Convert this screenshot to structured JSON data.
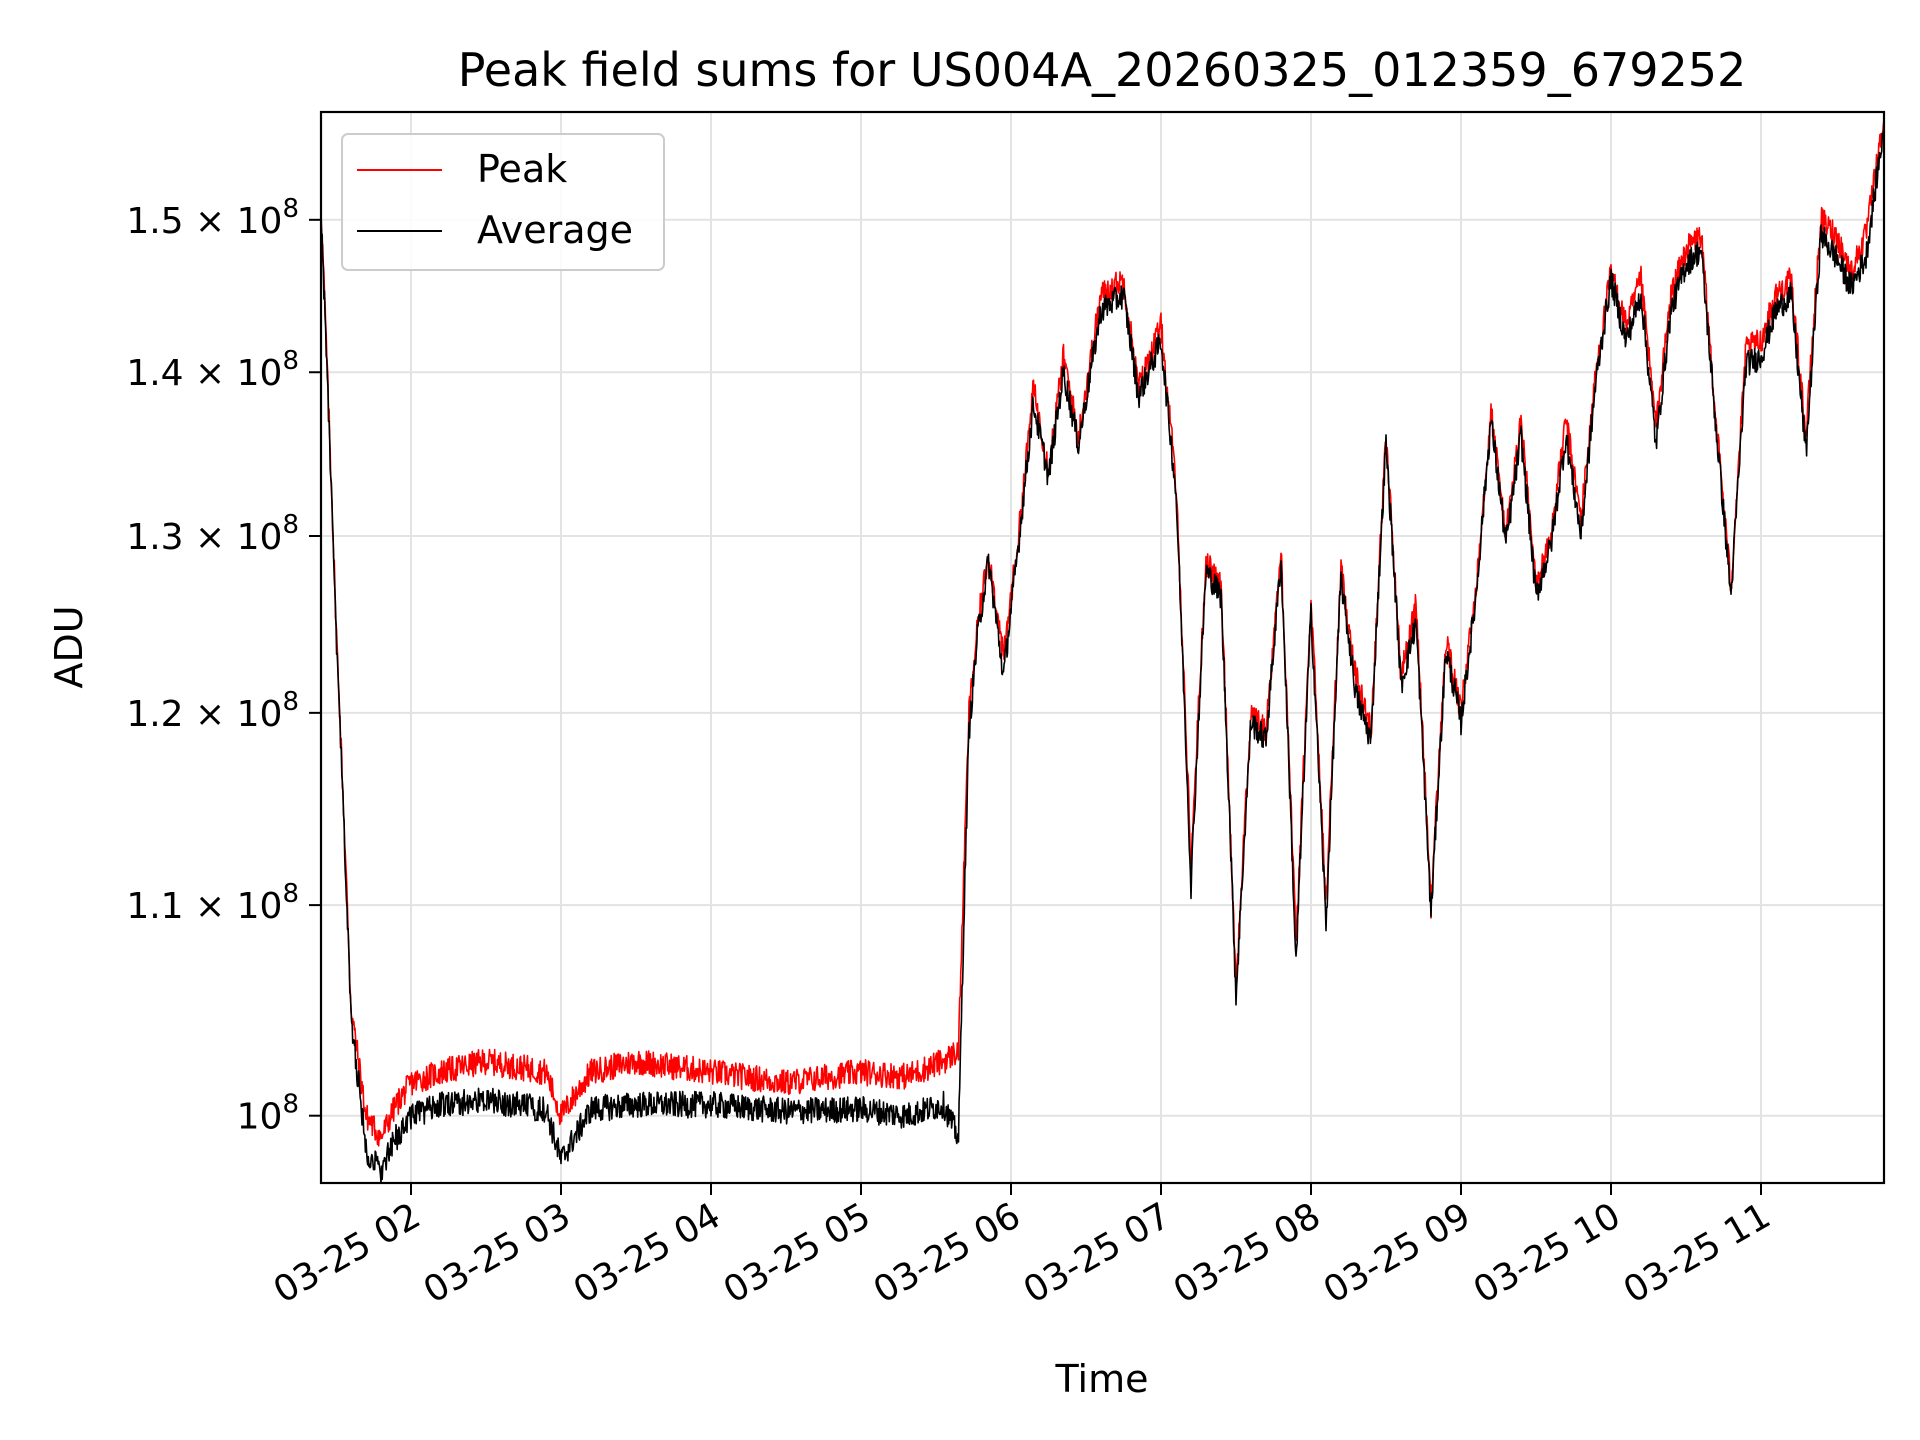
{
  "chart_data": {
    "type": "line",
    "title": "Peak field sums for US004A_20260325_012359_679252",
    "xlabel": "Time",
    "ylabel": "ADU",
    "y_scale": "log",
    "xlim_hours": [
      1.4,
      11.82
    ],
    "ylim": [
      97000000,
      157500000
    ],
    "grid": true,
    "legend_position": "upper-left",
    "x_ticks": [
      {
        "hour": 2,
        "label": "03-25 02"
      },
      {
        "hour": 3,
        "label": "03-25 03"
      },
      {
        "hour": 4,
        "label": "03-25 04"
      },
      {
        "hour": 5,
        "label": "03-25 05"
      },
      {
        "hour": 6,
        "label": "03-25 06"
      },
      {
        "hour": 7,
        "label": "03-25 07"
      },
      {
        "hour": 8,
        "label": "03-25 08"
      },
      {
        "hour": 9,
        "label": "03-25 09"
      },
      {
        "hour": 10,
        "label": "03-25 10"
      },
      {
        "hour": 11,
        "label": "03-25 11"
      }
    ],
    "y_ticks": [
      {
        "value": 100000000,
        "base": "10",
        "exp": "8"
      },
      {
        "value": 110000000,
        "base": "1.1 × 10",
        "exp": "8"
      },
      {
        "value": 120000000,
        "base": "1.2 × 10",
        "exp": "8"
      },
      {
        "value": 130000000,
        "base": "1.3 × 10",
        "exp": "8"
      },
      {
        "value": 140000000,
        "base": "1.4 × 10",
        "exp": "8"
      },
      {
        "value": 150000000,
        "base": "1.5 × 10",
        "exp": "8"
      }
    ],
    "series": [
      {
        "name": "Peak",
        "color": "#ff0000",
        "x": [
          1.4,
          1.5,
          1.6,
          1.7,
          1.8,
          1.9,
          2.0,
          2.2,
          2.5,
          2.9,
          3.0,
          3.2,
          3.5,
          4.0,
          4.5,
          5.0,
          5.3,
          5.55,
          5.65,
          5.72,
          5.78,
          5.85,
          5.95,
          6.05,
          6.15,
          6.25,
          6.35,
          6.45,
          6.6,
          6.75,
          6.85,
          7.0,
          7.1,
          7.2,
          7.3,
          7.4,
          7.5,
          7.6,
          7.7,
          7.8,
          7.9,
          8.0,
          8.1,
          8.2,
          8.3,
          8.4,
          8.5,
          8.6,
          8.7,
          8.8,
          8.9,
          9.0,
          9.1,
          9.2,
          9.3,
          9.4,
          9.5,
          9.6,
          9.7,
          9.8,
          9.9,
          10.0,
          10.1,
          10.2,
          10.3,
          10.4,
          10.5,
          10.6,
          10.7,
          10.8,
          10.9,
          11.0,
          11.1,
          11.2,
          11.3,
          11.4,
          11.5,
          11.6,
          11.7,
          11.82
        ],
        "y": [
          151000000,
          125000000,
          105000000,
          100000000,
          99000000,
          100500000,
          101500000,
          102000000,
          102500000,
          102000000,
          100000000,
          102000000,
          102500000,
          102000000,
          101500000,
          102000000,
          101800000,
          102500000,
          103000000,
          120000000,
          125000000,
          129000000,
          123000000,
          130000000,
          139000000,
          134000000,
          141000000,
          136000000,
          145000000,
          146000000,
          139000000,
          143000000,
          133000000,
          112000000,
          128500000,
          127000000,
          106000000,
          120000000,
          119000000,
          129000000,
          108000000,
          126000000,
          110000000,
          128000000,
          122000000,
          119000000,
          136000000,
          122000000,
          126000000,
          110000000,
          124000000,
          120000000,
          127000000,
          137500000,
          130000000,
          137000000,
          127000000,
          130000000,
          137000000,
          131000000,
          140000000,
          146500000,
          143000000,
          146000000,
          136500000,
          145000000,
          148000000,
          149000000,
          137000000,
          127000000,
          141500000,
          142000000,
          145000000,
          146000000,
          136000000,
          150000000,
          149000000,
          146500000,
          149000000,
          157000000
        ]
      },
      {
        "name": "Average",
        "color": "#000000",
        "x": [
          1.4,
          1.5,
          1.6,
          1.7,
          1.8,
          1.9,
          2.0,
          2.2,
          2.5,
          2.9,
          3.0,
          3.2,
          3.5,
          4.0,
          4.5,
          5.0,
          5.3,
          5.55,
          5.65,
          5.72,
          5.78,
          5.85,
          5.95,
          6.05,
          6.15,
          6.25,
          6.35,
          6.45,
          6.6,
          6.75,
          6.85,
          7.0,
          7.1,
          7.2,
          7.3,
          7.4,
          7.5,
          7.6,
          7.7,
          7.8,
          7.9,
          8.0,
          8.1,
          8.2,
          8.3,
          8.4,
          8.5,
          8.6,
          8.7,
          8.8,
          8.9,
          9.0,
          9.1,
          9.2,
          9.3,
          9.4,
          9.5,
          9.6,
          9.7,
          9.8,
          9.9,
          10.0,
          10.1,
          10.2,
          10.3,
          10.4,
          10.5,
          10.6,
          10.7,
          10.8,
          10.9,
          11.0,
          11.1,
          11.2,
          11.3,
          11.4,
          11.5,
          11.6,
          11.7,
          11.82
        ],
        "y": [
          150500000,
          124500000,
          104500000,
          98500000,
          97500000,
          99000000,
          100000000,
          100500000,
          100700000,
          100300000,
          98000000,
          100300000,
          100500000,
          100500000,
          100200000,
          100300000,
          100000000,
          100500000,
          99000000,
          119000000,
          124500000,
          128500000,
          122000000,
          129500000,
          138000000,
          133500000,
          140000000,
          135500000,
          144000000,
          145000000,
          138500000,
          142000000,
          132500000,
          111000000,
          128000000,
          126500000,
          105500000,
          119500000,
          118500000,
          128500000,
          107000000,
          125500000,
          109000000,
          127500000,
          121000000,
          118500000,
          135500000,
          121500000,
          125000000,
          109500000,
          123500000,
          119500000,
          126500000,
          137000000,
          129500000,
          136000000,
          126500000,
          129500000,
          136000000,
          130000000,
          139500000,
          146000000,
          142000000,
          145000000,
          135500000,
          144000000,
          147000000,
          148000000,
          136500000,
          126500000,
          140500000,
          141000000,
          144000000,
          145000000,
          135000000,
          149000000,
          147500000,
          145500000,
          147500000,
          156500000
        ]
      }
    ]
  }
}
